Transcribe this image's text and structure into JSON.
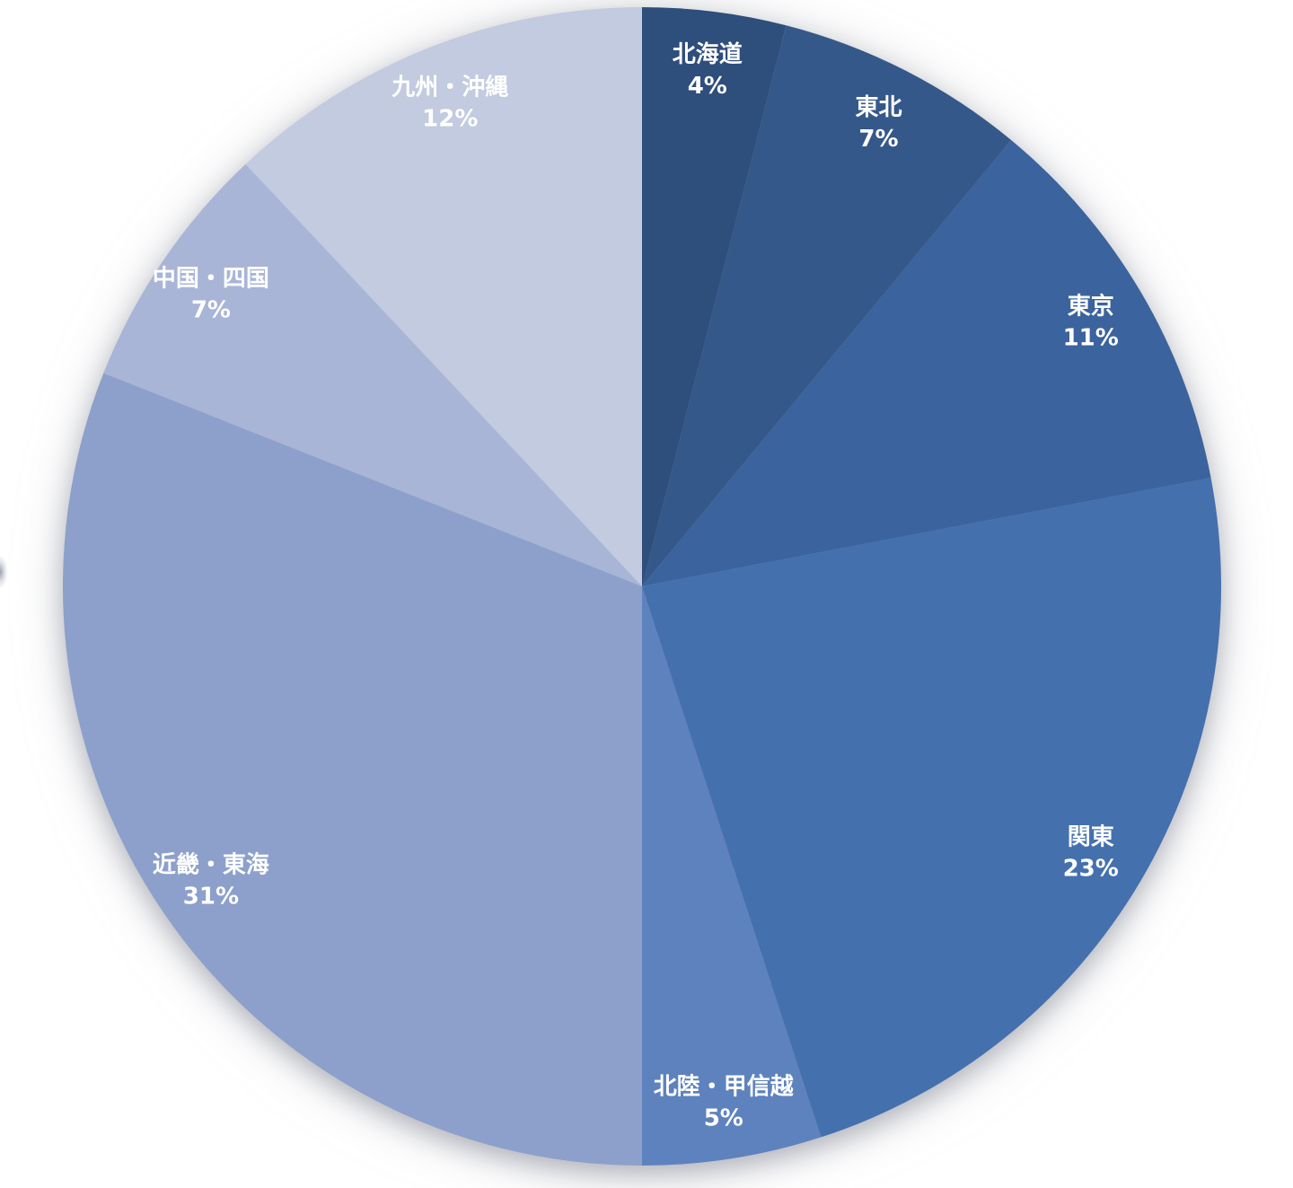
{
  "chart_data": {
    "type": "pie",
    "title": "",
    "categories": [
      "北海道",
      "東北",
      "東京",
      "関東",
      "北陸・甲信越",
      "近畿・東海",
      "中国・四国",
      "九州・沖縄"
    ],
    "values": [
      4,
      7,
      11,
      23,
      5,
      31,
      7,
      12
    ],
    "percent_labels": [
      "4%",
      "7%",
      "11%",
      "23%",
      "5%",
      "31%",
      "7%",
      "12%"
    ],
    "slice_colors": [
      "#2E4E7B",
      "#35588A",
      "#3B639D",
      "#4470AE",
      "#5E82BE",
      "#8CA0CB",
      "#A9B5D6",
      "#C2CBDF"
    ],
    "label_color": "#FFFFFF",
    "total": 100,
    "start_angle_deg": 0,
    "direction": "clockwise",
    "legend_position": "none",
    "data_labels": "category-and-percent-inside",
    "background_color": "#FFFFFF"
  }
}
